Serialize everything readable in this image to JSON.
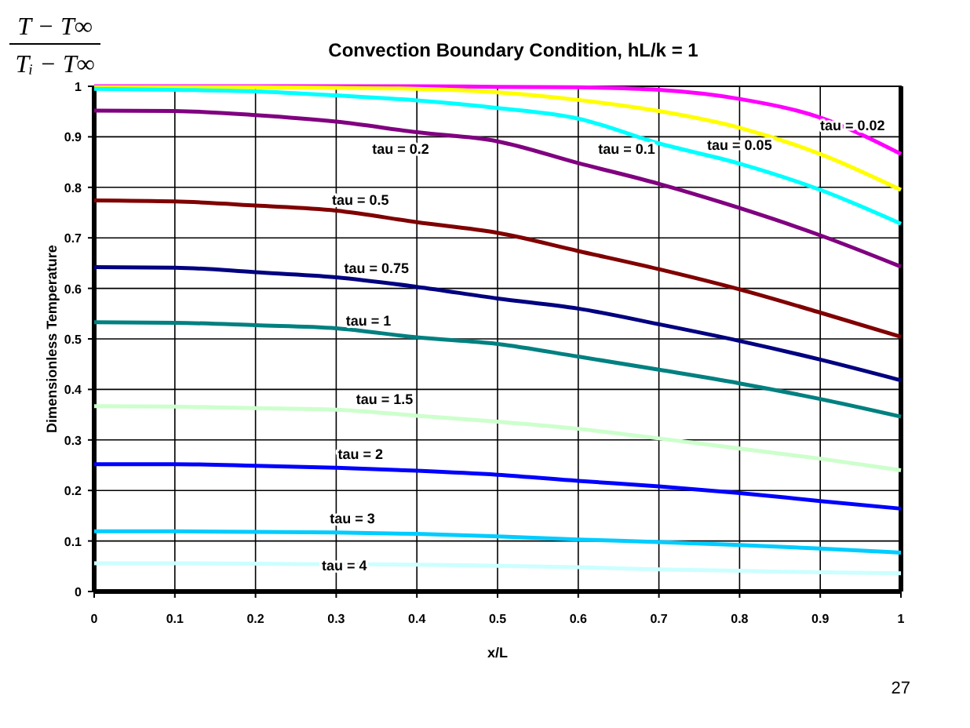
{
  "chart_data": {
    "type": "line",
    "title": "Convection Boundary Condition, hL/k = 1",
    "xlabel": "x/L",
    "ylabel": "Dimensionless Temperature",
    "annotations": [
      "T − T∞",
      "Tᵢ − T∞",
      "27"
    ],
    "x": [
      0,
      0.1,
      0.2,
      0.3,
      0.4,
      0.5,
      0.6,
      0.7,
      0.8,
      0.9,
      1
    ],
    "series": [
      {
        "name": "tau = 0.02",
        "color": "#ff00ff",
        "values": [
          1.0,
          1.0,
          1.0,
          1.0,
          1.0,
          0.999,
          0.998,
          0.993,
          0.975,
          0.938,
          0.866
        ]
      },
      {
        "name": "tau = 0.05",
        "color": "#ffff00",
        "values": [
          0.998,
          0.998,
          0.998,
          0.997,
          0.995,
          0.988,
          0.973,
          0.951,
          0.918,
          0.866,
          0.795
        ]
      },
      {
        "name": "tau = 0.1",
        "color": "#00ffff",
        "values": [
          0.995,
          0.993,
          0.99,
          0.982,
          0.972,
          0.957,
          0.936,
          0.887,
          0.847,
          0.795,
          0.728
        ]
      },
      {
        "name": "tau = 0.2",
        "color": "#800080",
        "values": [
          0.952,
          0.951,
          0.943,
          0.93,
          0.909,
          0.891,
          0.848,
          0.807,
          0.759,
          0.705,
          0.643
        ]
      },
      {
        "name": "tau = 0.5",
        "color": "#800000",
        "values": [
          0.774,
          0.772,
          0.764,
          0.754,
          0.731,
          0.71,
          0.674,
          0.638,
          0.598,
          0.552,
          0.504
        ]
      },
      {
        "name": "tau = 0.75",
        "color": "#000080",
        "values": [
          0.642,
          0.641,
          0.632,
          0.622,
          0.603,
          0.58,
          0.56,
          0.529,
          0.496,
          0.459,
          0.418
        ]
      },
      {
        "name": "tau = 1",
        "color": "#008080",
        "values": [
          0.533,
          0.532,
          0.527,
          0.521,
          0.503,
          0.49,
          0.465,
          0.439,
          0.412,
          0.381,
          0.346
        ]
      },
      {
        "name": "tau = 1.5",
        "color": "#ccffcc",
        "values": [
          0.367,
          0.366,
          0.363,
          0.36,
          0.348,
          0.336,
          0.322,
          0.303,
          0.283,
          0.263,
          0.24
        ]
      },
      {
        "name": "tau = 2",
        "color": "#0000ff",
        "values": [
          0.252,
          0.252,
          0.249,
          0.245,
          0.239,
          0.231,
          0.219,
          0.208,
          0.195,
          0.179,
          0.164
        ]
      },
      {
        "name": "tau = 3",
        "color": "#00ccff",
        "values": [
          0.119,
          0.119,
          0.118,
          0.117,
          0.114,
          0.109,
          0.103,
          0.098,
          0.092,
          0.085,
          0.077
        ]
      },
      {
        "name": "tau = 4",
        "color": "#ccffff",
        "values": [
          0.056,
          0.056,
          0.055,
          0.054,
          0.053,
          0.051,
          0.048,
          0.044,
          0.041,
          0.038,
          0.036
        ]
      }
    ],
    "xlim": [
      0,
      1
    ],
    "ylim": [
      0,
      1
    ],
    "xticks": [
      0,
      0.1,
      0.2,
      0.3,
      0.4,
      0.5,
      0.6,
      0.7,
      0.8,
      0.9,
      1
    ],
    "yticks": [
      0,
      0.1,
      0.2,
      0.3,
      0.4,
      0.5,
      0.6,
      0.7,
      0.8,
      0.9,
      1
    ],
    "grid": true,
    "marker": "none",
    "line_style": "solid"
  }
}
